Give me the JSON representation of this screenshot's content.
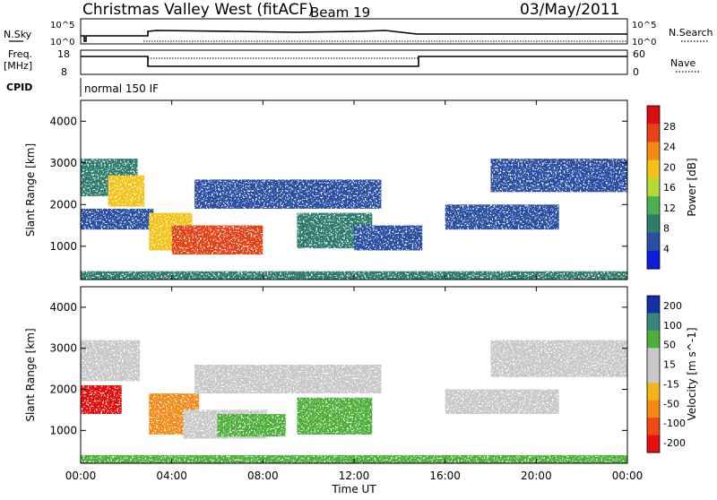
{
  "header": {
    "title": "Christmas Valley West (fitACF)",
    "beam": "Beam 19",
    "date": "03/May/2011"
  },
  "aux_panels": {
    "nsky_label": "N.Sky",
    "nsearch_label": "N.Search",
    "nsky_tick_top": "10^5",
    "nsky_tick_bottom": "10^0",
    "nsky_tick_top_right": "10^5",
    "nsky_tick_bottom_right": "10^0",
    "freq_label": "Freq.",
    "freq_unit": "[MHz]",
    "freq_ticks": [
      "18",
      "8"
    ],
    "nave_label": "Nave",
    "nave_ticks": [
      "60",
      "0"
    ],
    "cpid_label": "CPID",
    "cpid_text": "normal 150 IF"
  },
  "colors": {
    "power_scale": [
      "#0a1cdc",
      "#2b4fa4",
      "#2e7c6c",
      "#4caf50",
      "#b6d936",
      "#f4c316",
      "#f58a17",
      "#e64318",
      "#d90f0f"
    ],
    "velocity_scale": [
      "#e60f0f",
      "#ee4a12",
      "#f58a17",
      "#f2b619",
      "#c8c8c8",
      "#c8c8c8",
      "#4faf3b",
      "#38857e",
      "#1230a8"
    ]
  },
  "chart_data": [
    {
      "type": "heatmap",
      "name": "power",
      "xlabel": "",
      "ylabel": "Slant Range [km]",
      "xlim": [
        "00:00",
        "24:00"
      ],
      "ylim": [
        200,
        4500
      ],
      "yticks": [
        1000,
        2000,
        3000,
        4000
      ],
      "colorbar": {
        "label": "Power [dB]",
        "ticks": [
          4,
          8,
          12,
          16,
          20,
          24,
          28
        ]
      },
      "echo_regions": [
        {
          "t": [
            0.0,
            3.2
          ],
          "r": [
            1400,
            1900
          ],
          "power": 6
        },
        {
          "t": [
            0.0,
            2.5
          ],
          "r": [
            2200,
            3100
          ],
          "power": 8
        },
        {
          "t": [
            1.2,
            2.8
          ],
          "r": [
            1950,
            2700
          ],
          "power": 18
        },
        {
          "t": [
            3.0,
            4.9
          ],
          "r": [
            900,
            1800
          ],
          "power": 20
        },
        {
          "t": [
            4.0,
            8.0
          ],
          "r": [
            800,
            1500
          ],
          "power": 26
        },
        {
          "t": [
            5.0,
            13.2
          ],
          "r": [
            1900,
            2600
          ],
          "power": 4
        },
        {
          "t": [
            9.5,
            12.8
          ],
          "r": [
            950,
            1800
          ],
          "power": 8
        },
        {
          "t": [
            12.0,
            15.0
          ],
          "r": [
            900,
            1500
          ],
          "power": 5
        },
        {
          "t": [
            16.0,
            21.0
          ],
          "r": [
            1400,
            2000
          ],
          "power": 5
        },
        {
          "t": [
            18.0,
            24.0
          ],
          "r": [
            2300,
            3100
          ],
          "power": 6
        },
        {
          "t": [
            0.0,
            24.0
          ],
          "r": [
            200,
            400
          ],
          "power": 10
        }
      ]
    },
    {
      "type": "heatmap",
      "name": "velocity",
      "xlabel": "Time UT",
      "ylabel": "Slant Range [km]",
      "xlim": [
        "00:00",
        "24:00"
      ],
      "ylim": [
        200,
        4500
      ],
      "xticks": [
        "00:00",
        "04:00",
        "08:00",
        "12:00",
        "16:00",
        "20:00",
        "00:00"
      ],
      "yticks": [
        1000,
        2000,
        3000,
        4000
      ],
      "colorbar": {
        "label": "Velocity [m s^-1]",
        "ticks": [
          200,
          100,
          50,
          15,
          -15,
          -50,
          -100,
          -200
        ]
      },
      "echo_regions": [
        {
          "t": [
            0.0,
            1.8
          ],
          "r": [
            1400,
            2100
          ],
          "velocity": -220
        },
        {
          "t": [
            0.0,
            2.6
          ],
          "r": [
            2200,
            3200
          ],
          "velocity": 0
        },
        {
          "t": [
            3.0,
            5.2
          ],
          "r": [
            900,
            1900
          ],
          "velocity": -60
        },
        {
          "t": [
            4.5,
            8.2
          ],
          "r": [
            800,
            1500
          ],
          "velocity": 0
        },
        {
          "t": [
            6.0,
            9.0
          ],
          "r": [
            850,
            1400
          ],
          "velocity": 30
        },
        {
          "t": [
            9.5,
            12.8
          ],
          "r": [
            900,
            1800
          ],
          "velocity": 40
        },
        {
          "t": [
            5.0,
            13.2
          ],
          "r": [
            1900,
            2600
          ],
          "velocity": 0
        },
        {
          "t": [
            16.0,
            21.0
          ],
          "r": [
            1400,
            2000
          ],
          "velocity": 0
        },
        {
          "t": [
            18.0,
            24.0
          ],
          "r": [
            2300,
            3200
          ],
          "velocity": 0
        },
        {
          "t": [
            0.0,
            24.0
          ],
          "r": [
            200,
            400
          ],
          "velocity": 30
        }
      ]
    }
  ]
}
